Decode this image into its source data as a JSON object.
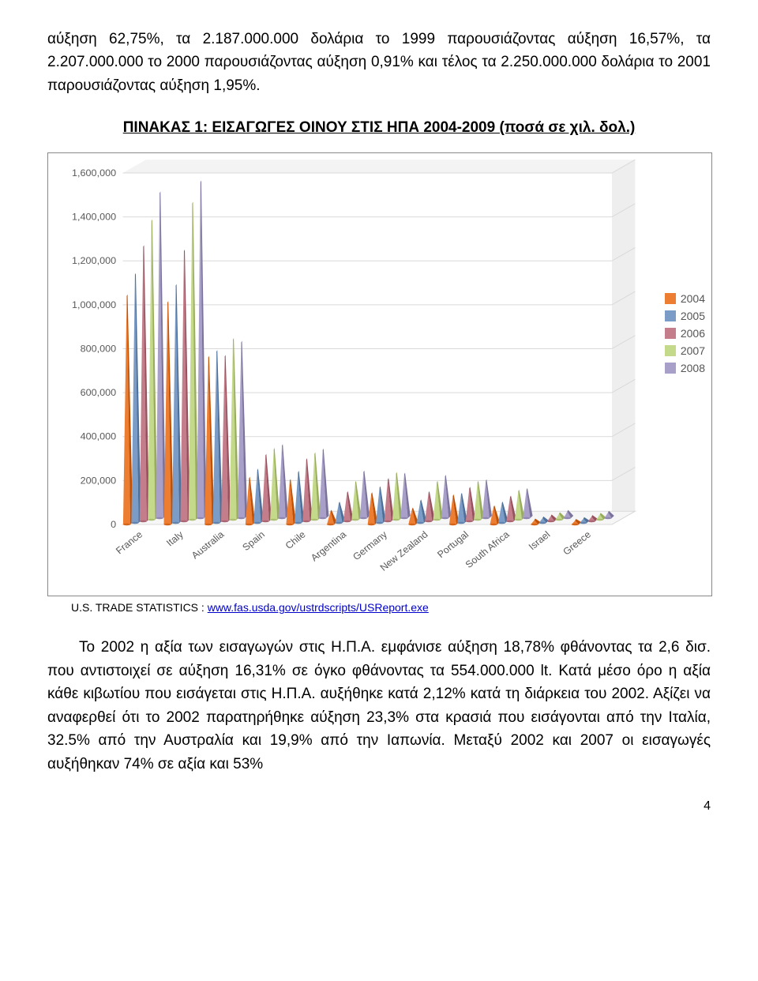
{
  "text": {
    "para1": "αύξηση 62,75%, τα 2.187.000.000 δολάρια το 1999 παρουσιάζοντας αύξηση 16,57%, τα 2.207.000.000 το 2000 παρουσιάζοντας αύξηση 0,91% και τέλος τα 2.250.000.000 δολάρια το 2001 παρουσιάζοντας αύξηση 1,95%.",
    "heading": "ΠΙΝΑΚΑΣ 1: ΕΙΣΑΓΩΓΕΣ ΟΙΝΟΥ ΣΤΙΣ ΗΠΑ 2004-2009 (ποσά σε χιλ. δολ.)",
    "source_prefix": "U.S. TRADE STATISTICS : ",
    "source_link": "www.fas.usda.gov/ustrdscripts/USReport.exe",
    "para2": "Το 2002 η αξία των εισαγωγών στις Η.Π.Α. εμφάνισε αύξηση 18,78% φθάνοντας τα 2,6 δισ. που αντιστοιχεί σε αύξηση 16,31% σε όγκο φθάνοντας τα 554.000.000 lt. Κατά μέσο όρο η αξία κάθε κιβωτίου που εισάγεται στις Η.Π.Α. αυξήθηκε κατά 2,12% κατά τη διάρκεια του 2002. Αξίζει να αναφερθεί ότι το 2002 παρατηρήθηκε αύξηση 23,3% στα κρασιά που εισάγονται από την Ιταλία, 32.5% από την Αυστραλία και 19,9% από την Ιαπωνία. Μεταξύ 2002 και 2007 οι εισαγωγές αυξήθηκαν 74% σε αξία και 53%",
    "page_number": "4"
  },
  "chart": {
    "type": "3d-cone-bar",
    "background_color": "#ffffff",
    "grid_color": "#d9d9d9",
    "axis_text_color": "#595959",
    "ylim": [
      0,
      1600000
    ],
    "ytick_step": 200000,
    "yticks_labels": [
      "0",
      "200,000",
      "400,000",
      "600,000",
      "800,000",
      "1,000,000",
      "1,200,000",
      "1,400,000",
      "1,600,000"
    ],
    "categories": [
      "France",
      "Italy",
      "Australia",
      "Spain",
      "Chile",
      "Argentina",
      "Germany",
      "New Zealand",
      "Portugal",
      "South Africa",
      "Israel",
      "Greece"
    ],
    "series": [
      {
        "name": "2004",
        "color": "#ed7d31"
      },
      {
        "name": "2005",
        "color": "#7a9cc6"
      },
      {
        "name": "2006",
        "color": "#c47d8a"
      },
      {
        "name": "2007",
        "color": "#c5d98a"
      },
      {
        "name": "2008",
        "color": "#a9a0c9"
      }
    ],
    "values": {
      "France": [
        1040000,
        1130000,
        1250000,
        1360000,
        1480000
      ],
      "Italy": [
        1010000,
        1080000,
        1230000,
        1440000,
        1530000
      ],
      "Australia": [
        760000,
        780000,
        750000,
        820000,
        800000
      ],
      "Spain": [
        210000,
        240000,
        300000,
        320000,
        330000
      ],
      "Chile": [
        200000,
        230000,
        280000,
        300000,
        310000
      ],
      "Argentina": [
        60000,
        90000,
        130000,
        170000,
        210000
      ],
      "Germany": [
        140000,
        160000,
        190000,
        210000,
        200000
      ],
      "New Zealand": [
        70000,
        100000,
        130000,
        170000,
        190000
      ],
      "Portugal": [
        130000,
        130000,
        150000,
        170000,
        170000
      ],
      "South Africa": [
        80000,
        90000,
        110000,
        130000,
        130000
      ],
      "Israel": [
        20000,
        22000,
        24000,
        27000,
        30000
      ],
      "Greece": [
        18000,
        19000,
        21000,
        24000,
        26000
      ]
    },
    "legend_labels": [
      "2004",
      "2005",
      "2006",
      "2007",
      "2008"
    ]
  }
}
